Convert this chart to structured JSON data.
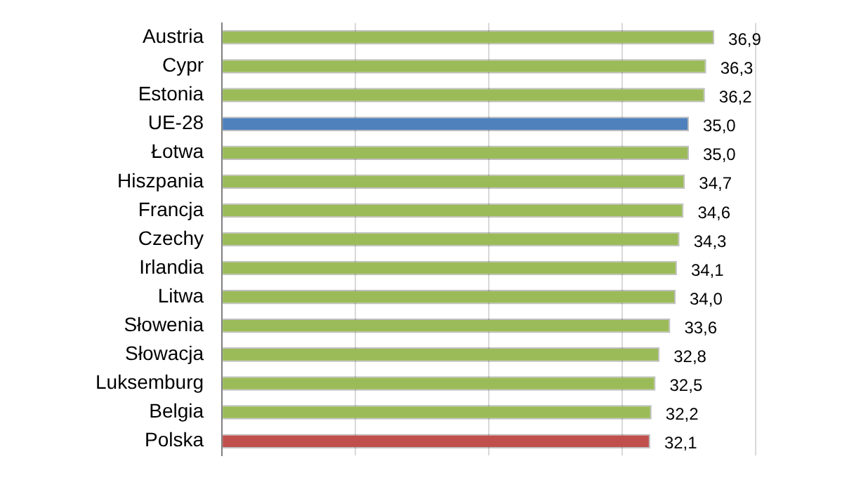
{
  "chart_data": {
    "type": "bar",
    "orientation": "horizontal",
    "categories": [
      "Austria",
      "Cypr",
      "Estonia",
      "UE-28",
      "Łotwa",
      "Hiszpania",
      "Francja",
      "Czechy",
      "Irlandia",
      "Litwa",
      "Słowenia",
      "Słowacja",
      "Luksemburg",
      "Belgia",
      "Polska"
    ],
    "values": [
      36.9,
      36.3,
      36.2,
      35.0,
      35.0,
      34.7,
      34.6,
      34.3,
      34.1,
      34.0,
      33.6,
      32.8,
      32.5,
      32.2,
      32.1
    ],
    "value_labels": [
      "36,9",
      "36,3",
      "36,2",
      "35,0",
      "35,0",
      "34,7",
      "34,6",
      "34,3",
      "34,1",
      "34,0",
      "33,6",
      "32,8",
      "32,5",
      "32,2",
      "32,1"
    ],
    "colors": [
      "#9bbb59",
      "#9bbb59",
      "#9bbb59",
      "#4f81bd",
      "#9bbb59",
      "#9bbb59",
      "#9bbb59",
      "#9bbb59",
      "#9bbb59",
      "#9bbb59",
      "#9bbb59",
      "#9bbb59",
      "#9bbb59",
      "#9bbb59",
      "#c0504d"
    ],
    "xlim": [
      0,
      40
    ],
    "xticks": [
      {
        "value": 0,
        "label": null
      },
      {
        "value": 10,
        "label": null
      },
      {
        "value": 20,
        "label": null
      },
      {
        "value": 30,
        "label": null
      },
      {
        "value": 40,
        "label": null
      }
    ],
    "grid": "x",
    "legend": false
  }
}
